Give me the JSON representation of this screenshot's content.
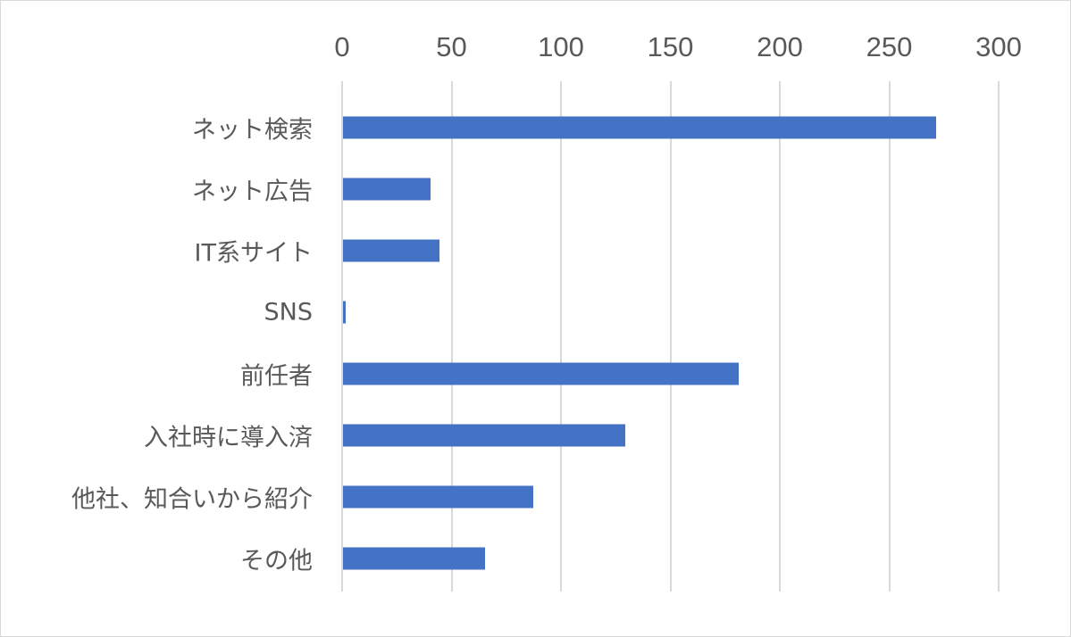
{
  "chart_data": {
    "type": "bar",
    "orientation": "horizontal",
    "title": "",
    "xlabel": "",
    "ylabel": "",
    "categories": [
      "ネット検索",
      "ネット広告",
      "IT系サイト",
      "SNS",
      "前任者",
      "入社時に導入済",
      "他社、知合いから紹介",
      "その他"
    ],
    "values": [
      271,
      40,
      44,
      1,
      181,
      129,
      87,
      65
    ],
    "xlim": [
      0,
      300
    ],
    "x_ticks": [
      "0",
      "50",
      "100",
      "150",
      "200",
      "250",
      "300"
    ],
    "x_axis_position": "top",
    "grid": true,
    "legend": null,
    "bar_color": "#4472c4"
  }
}
